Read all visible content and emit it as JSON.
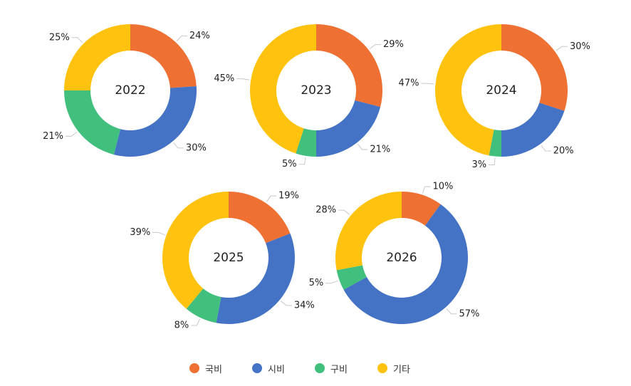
{
  "chart_data": {
    "type": "pie",
    "variant": "donut",
    "categories": [
      "국비",
      "시비",
      "구비",
      "기타"
    ],
    "colors": [
      "#EE7032",
      "#4472C4",
      "#41BF7D",
      "#FFC20E"
    ],
    "legend_placement": "bottom",
    "charts": [
      {
        "year": "2022",
        "values": [
          24,
          30,
          21,
          25
        ],
        "labels": [
          "24%",
          "30%",
          "21%",
          "25%"
        ]
      },
      {
        "year": "2023",
        "values": [
          29,
          21,
          5,
          45
        ],
        "labels": [
          "29%",
          "21%",
          "5%",
          "45%"
        ]
      },
      {
        "year": "2024",
        "values": [
          30,
          20,
          3,
          47
        ],
        "labels": [
          "30%",
          "20%",
          "3%",
          "47%"
        ]
      },
      {
        "year": "2025",
        "values": [
          19,
          34,
          8,
          39
        ],
        "labels": [
          "19%",
          "34%",
          "8%",
          "39%"
        ]
      },
      {
        "year": "2026",
        "values": [
          10,
          57,
          5,
          28
        ],
        "labels": [
          "10%",
          "57%",
          "5%",
          "28%"
        ]
      }
    ]
  }
}
